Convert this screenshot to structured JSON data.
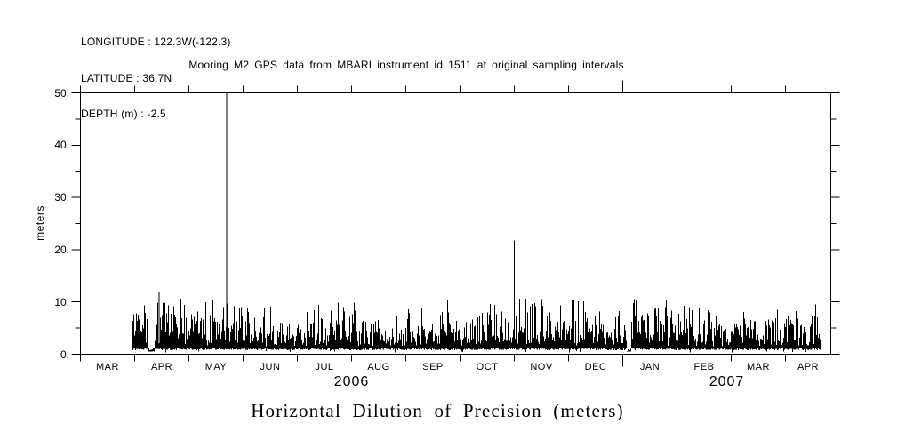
{
  "page": {
    "background": "#ffffff",
    "foreground": "#000000"
  },
  "header": {
    "longitude_label": "LONGITUDE : 122.3W(-122.3)",
    "latitude_label": "LATITUDE : 36.7N",
    "depth_label": "DEPTH (m) : -2.5"
  },
  "title": "Mooring M2 GPS data from MBARI instrument id 1511 at original sampling intervals",
  "bottom_title": "Horizontal Dilution of Precision (meters)",
  "chart_data": {
    "type": "line",
    "title": "Mooring M2 GPS data from MBARI instrument id 1511 at original sampling intervals",
    "xlabel": "",
    "ylabel": "meters",
    "ylim": [
      0,
      50
    ],
    "ytick_values": [
      0,
      10,
      20,
      30,
      40,
      50
    ],
    "ytick_labels": [
      "0.",
      "10.",
      "20.",
      "30.",
      "40.",
      "50."
    ],
    "ytick_minor_values": [
      5,
      15,
      25,
      35,
      45
    ],
    "grid": false,
    "legend": false,
    "x_axis": {
      "month_labels": [
        "MAR",
        "APR",
        "MAY",
        "JUN",
        "JUL",
        "AUG",
        "SEP",
        "OCT",
        "NOV",
        "DEC",
        "JAN",
        "FEB",
        "MAR",
        "APR"
      ],
      "year_labels": [
        "2006",
        "2007"
      ],
      "year_boundary_after_month_index": 10,
      "span_months": 13.84
    },
    "series_name": "Horizontal Dilution of Precision",
    "data_start_frac": 0.068,
    "data_end_frac": 0.985,
    "baseline_band_m": [
      0.8,
      4.5
    ],
    "typical_peak_band_m": [
      5,
      10.5
    ],
    "quiet_gaps_frac": [
      [
        0.089,
        0.0985
      ],
      [
        0.728,
        0.734
      ]
    ],
    "notable_spikes": [
      {
        "x_frac": 0.105,
        "value_m": 12.0,
        "approx_date": "2006-04-14",
        "clipped_at_axis_top": false
      },
      {
        "x_frac": 0.195,
        "value_m": 50.0,
        "approx_date": "2006-05-21",
        "clipped_at_axis_top": true
      },
      {
        "x_frac": 0.41,
        "value_m": 13.5,
        "approx_date": "2006-08-21",
        "clipped_at_axis_top": false
      },
      {
        "x_frac": 0.578,
        "value_m": 21.8,
        "approx_date": "2006-10-31",
        "clipped_at_axis_top": false
      }
    ],
    "noise_seed": 1511
  }
}
